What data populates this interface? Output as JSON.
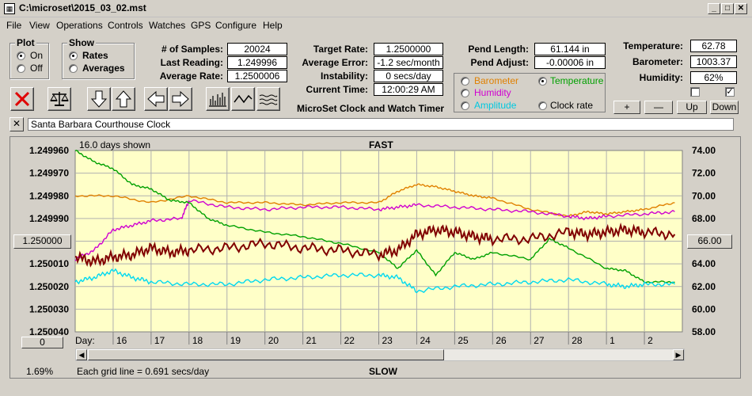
{
  "window": {
    "title": "C:\\microset\\2015_03_02.mst",
    "controls": [
      "_",
      "□",
      "✕"
    ]
  },
  "menu": [
    "File",
    "View",
    "Operations",
    "Controls",
    "Watches",
    "GPS",
    "Configure",
    "Help"
  ],
  "plot_group": {
    "title": "Plot",
    "options": [
      {
        "label": "On",
        "selected": true
      },
      {
        "label": "Off",
        "selected": false
      }
    ]
  },
  "show_group": {
    "title": "Show",
    "options": [
      {
        "label": "Rates",
        "selected": true
      },
      {
        "label": "Averages",
        "selected": false
      }
    ]
  },
  "stats": {
    "samples_label": "# of Samples:",
    "samples_value": "20024",
    "last_label": "Last Reading:",
    "last_value": "1.249996",
    "avg_label": "Average Rate:",
    "avg_value": "1.2500006",
    "target_label": "Target Rate:",
    "target_value": "1.2500000",
    "avgerr_label": "Average Error:",
    "avgerr_value": "-1.2 sec/month",
    "instab_label": "Instability:",
    "instab_value": "0 secs/day",
    "time_label": "Current Time:",
    "time_value": "12:00:29 AM",
    "pendlen_label": "Pend Length:",
    "pendlen_value": "61.144 in",
    "pendadj_label": "Pend Adjust:",
    "pendadj_value": "-0.00006 in"
  },
  "env": {
    "temp_label": "Temperature:",
    "temp_value": "62.78",
    "baro_label": "Barometer:",
    "baro_value": "1003.37",
    "hum_label": "Humidity:",
    "hum_value": "62%",
    "check1": false,
    "check2": true,
    "plus": "+",
    "minus": "—",
    "up": "Up",
    "down": "Down"
  },
  "series_select": [
    {
      "label": "Barometer",
      "color": "#e08000",
      "selected": false
    },
    {
      "label": "Temperature",
      "color": "#00a000",
      "selected": true
    },
    {
      "label": "Humidity",
      "color": "#d000d0",
      "selected": false
    },
    {
      "label": "Amplitude",
      "color": "#00c8e0",
      "selected": false
    },
    {
      "label": "Clock rate",
      "color": "#000000",
      "selected": false
    }
  ],
  "app_name": "MicroSet Clock and Watch Timer",
  "clock_name": "Santa Barbara Courthouse Clock",
  "close_x": "✕",
  "chart_header": {
    "days_shown": "16.0 days shown",
    "top_label": "FAST",
    "bottom_label": "SLOW"
  },
  "footer": {
    "percent": "1.69%",
    "grid_note": "Each grid line = 0.691 secs/day",
    "day_prefix": "Day:",
    "left_button": "0"
  },
  "center_left": "1.250000",
  "center_right": "66.00",
  "chart_data": {
    "type": "line",
    "y_left_ticks": [
      "1.249960",
      "1.249970",
      "1.249980",
      "1.249990",
      "1.250000",
      "1.250010",
      "1.250020",
      "1.250030",
      "1.250040"
    ],
    "y_left_range": [
      1.24996,
      1.25004
    ],
    "y_right_ticks": [
      "74.00",
      "72.00",
      "70.00",
      "68.00",
      "66.00",
      "64.00",
      "62.00",
      "60.00",
      "58.00"
    ],
    "y_right_range": [
      58,
      74
    ],
    "x_range": [
      15,
      31
    ],
    "day_ticks": [
      {
        "label": "16",
        "day": 16
      },
      {
        "label": "17",
        "day": 17
      },
      {
        "label": "18",
        "day": 18
      },
      {
        "label": "19",
        "day": 19
      },
      {
        "label": "20",
        "day": 20
      },
      {
        "label": "21",
        "day": 21
      },
      {
        "label": "22",
        "day": 22
      },
      {
        "label": "23",
        "day": 23
      },
      {
        "label": "24",
        "day": 24
      },
      {
        "label": "25",
        "day": 25
      },
      {
        "label": "26",
        "day": 26
      },
      {
        "label": "27",
        "day": 27
      },
      {
        "label": "28",
        "day": 28
      },
      {
        "label": "1",
        "day": 29
      },
      {
        "label": "2",
        "day": 30
      }
    ],
    "series": [
      {
        "color": "#e08000",
        "axis": "left",
        "x": [
          15,
          16,
          17,
          18,
          19,
          20,
          21,
          22,
          23,
          23.5,
          24,
          24.5,
          25,
          25.5,
          26,
          27,
          28,
          28.5,
          29,
          29.5,
          30,
          30.8
        ],
        "y": [
          1.24998,
          1.24998,
          1.249983,
          1.24998,
          1.249983,
          1.249983,
          1.249984,
          1.249983,
          1.249983,
          1.249978,
          1.249975,
          1.249976,
          1.249978,
          1.24998,
          1.249981,
          1.249986,
          1.249989,
          1.249987,
          1.249988,
          1.249987,
          1.249986,
          1.249983
        ]
      },
      {
        "color": "#d000d0",
        "axis": "left",
        "x": [
          15,
          15.5,
          16,
          16.5,
          17,
          17.8,
          18,
          19,
          20,
          21,
          22,
          23,
          23.5,
          24,
          25,
          26,
          27,
          28,
          28.5,
          29,
          30,
          30.8
        ],
        "y": [
          1.250008,
          1.250004,
          1.249995,
          1.249993,
          1.249991,
          1.24999,
          1.249982,
          1.249985,
          1.249986,
          1.249985,
          1.249985,
          1.249986,
          1.249985,
          1.249984,
          1.249985,
          1.249986,
          1.249987,
          1.249989,
          1.24999,
          1.249989,
          1.249988,
          1.249987
        ]
      },
      {
        "color": "#00a000",
        "axis": "left",
        "x": [
          15,
          15.5,
          16,
          16.5,
          17,
          17.5,
          18,
          18.5,
          19,
          20,
          21,
          22,
          23,
          23.5,
          24,
          24.5,
          25,
          25.5,
          26,
          27,
          27.5,
          28,
          29,
          29.5,
          30,
          30.8
        ],
        "y": [
          1.24996,
          1.249965,
          1.249968,
          1.249975,
          1.249977,
          1.249982,
          1.249983,
          1.24999,
          1.249993,
          1.249996,
          1.249998,
          1.250001,
          1.250005,
          1.250012,
          1.250004,
          1.250015,
          1.250005,
          1.250008,
          1.250005,
          1.250008,
          1.249999,
          1.250003,
          1.250012,
          1.250013,
          1.250018,
          1.250018
        ]
      },
      {
        "color": "#00d8f0",
        "axis": "left",
        "x": [
          15,
          15.5,
          16,
          16.5,
          17,
          18,
          19,
          20,
          21,
          22,
          23,
          23.5,
          24,
          25,
          26,
          27,
          28,
          29,
          29.5,
          30,
          30.8
        ],
        "y": [
          1.250018,
          1.250016,
          1.250013,
          1.250016,
          1.250018,
          1.250019,
          1.250019,
          1.250017,
          1.250016,
          1.250015,
          1.250015,
          1.250016,
          1.250022,
          1.25002,
          1.250019,
          1.250018,
          1.250017,
          1.250019,
          1.25002,
          1.250019,
          1.250019
        ]
      },
      {
        "color": "#800000",
        "axis": "left",
        "x": [
          15,
          15.5,
          16,
          16.5,
          17,
          17.5,
          18,
          19,
          20,
          21,
          22,
          23,
          23.5,
          24,
          24.5,
          25,
          25.5,
          26,
          27,
          28,
          28.5,
          29,
          29.5,
          30,
          30.8
        ],
        "y": [
          1.250007,
          1.250009,
          1.250007,
          1.250006,
          1.250003,
          1.250005,
          1.250004,
          1.250003,
          1.250001,
          1.250003,
          1.250004,
          1.250006,
          1.250004,
          1.249997,
          1.249995,
          1.249996,
          1.249998,
          1.249999,
          1.249999,
          1.249996,
          1.249997,
          1.249996,
          1.249995,
          1.249996,
          1.249997
        ]
      }
    ]
  }
}
